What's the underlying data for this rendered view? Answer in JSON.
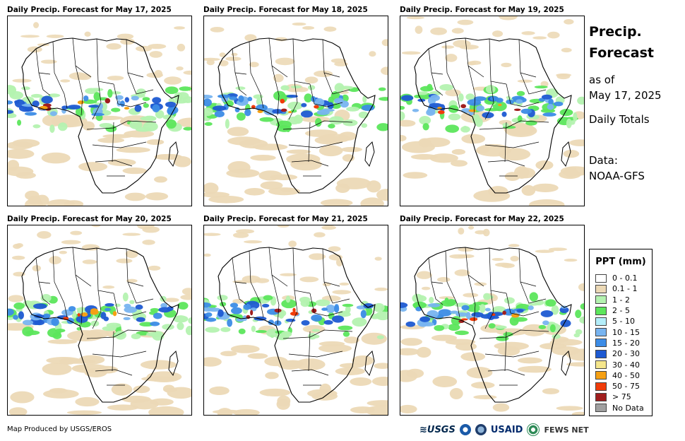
{
  "panels": [
    {
      "title": "Daily Precip. Forecast for May 17, 2025"
    },
    {
      "title": "Daily Precip. Forecast for May 18, 2025"
    },
    {
      "title": "Daily Precip. Forecast for May 19, 2025"
    },
    {
      "title": "Daily Precip. Forecast for May 20, 2025"
    },
    {
      "title": "Daily Precip. Forecast for May 21, 2025"
    },
    {
      "title": "Daily Precip. Forecast for May 22, 2025"
    }
  ],
  "info": {
    "title_line1": "Precip.",
    "title_line2": "Forecast",
    "as_of_line1": "as of",
    "as_of_line2": "May 17, 2025",
    "totals": "Daily Totals",
    "data_line1": "Data:",
    "data_line2": "NOAA-GFS"
  },
  "legend": {
    "title": "PPT (mm)",
    "items": [
      {
        "label": "0 - 0.1",
        "color": "#ffffff"
      },
      {
        "label": "0.1 - 1",
        "color": "#ecd9b6"
      },
      {
        "label": "1 - 2",
        "color": "#b4f2b0"
      },
      {
        "label": "2 - 5",
        "color": "#5ce65c"
      },
      {
        "label": "5 - 10",
        "color": "#b4eefa"
      },
      {
        "label": "10 - 15",
        "color": "#78b4f0"
      },
      {
        "label": "15 - 20",
        "color": "#3c8ce6"
      },
      {
        "label": "20 - 30",
        "color": "#1e5ad2"
      },
      {
        "label": "30 - 40",
        "color": "#f5e68c"
      },
      {
        "label": "40 - 50",
        "color": "#f5a014"
      },
      {
        "label": "50 - 75",
        "color": "#f03c0a"
      },
      {
        "label": "> 75",
        "color": "#a01e1e"
      },
      {
        "label": "No Data",
        "color": "#a0a0a0"
      }
    ]
  },
  "footer": {
    "credit": "Map Produced by USGS/EROS",
    "logo_usgs": "≋USGS",
    "logo_usaid": "USAID",
    "logo_fews": "FEWS NET"
  }
}
